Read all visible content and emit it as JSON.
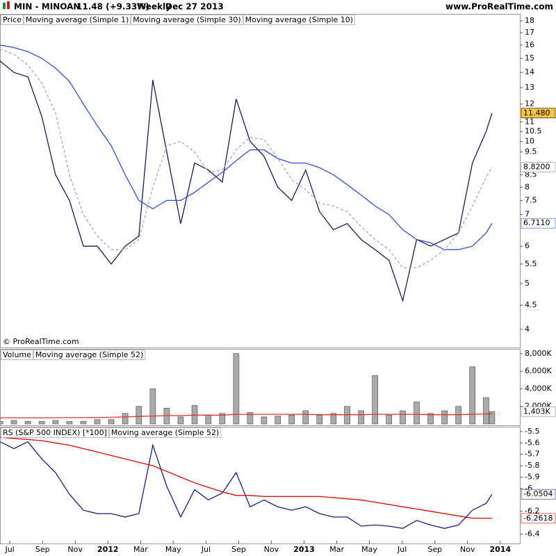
{
  "header": {
    "symbol": "MIN - MINOAN",
    "quote": "11.48 (+9.33%)",
    "period": "Weekly",
    "date": "Dec 27 2013",
    "site": "www.ProRealTime.com"
  },
  "watermark": "© ProRealTime.com",
  "chart_data": [
    {
      "type": "line",
      "label": "Price",
      "log_scale": true,
      "x": [
        2011.45,
        2011.521,
        2011.592,
        2011.663,
        2011.733,
        2011.804,
        2011.875,
        2011.946,
        2012.017,
        2012.088,
        2012.158,
        2012.229,
        2012.3,
        2012.371,
        2012.442,
        2012.512,
        2012.583,
        2012.654,
        2012.725,
        2012.796,
        2012.866,
        2012.937,
        2013.008,
        2013.079,
        2013.15,
        2013.22,
        2013.291,
        2013.362,
        2013.433,
        2013.503,
        2013.574,
        2013.645,
        2013.716,
        2013.787,
        2013.858,
        2013.928,
        2013.958
      ],
      "xlim": [
        2011.45,
        2014.1
      ],
      "ylim": [
        3.8,
        18.5
      ],
      "yticks": [
        4,
        4.5,
        5,
        5.5,
        6,
        7,
        7.5,
        8,
        8.5,
        9.5,
        10,
        10.5,
        11,
        12,
        13,
        14,
        15,
        16,
        17,
        18
      ],
      "series": [
        {
          "name": "Moving average (Simple 1)",
          "color": "#1a1a5e",
          "values": [
            14.8,
            14.0,
            13.7,
            11.3,
            8.5,
            7.5,
            6.0,
            6.0,
            5.5,
            6.0,
            6.3,
            13.5,
            9.5,
            6.7,
            9.0,
            8.7,
            8.2,
            12.3,
            10.0,
            9.3,
            8.0,
            7.5,
            8.7,
            7.1,
            6.5,
            6.7,
            6.2,
            5.9,
            5.6,
            4.6,
            6.2,
            6.0,
            6.2,
            6.4,
            9.0,
            10.5,
            11.48
          ]
        },
        {
          "name": "Moving average (Simple 30)",
          "color": "#2b4fd8",
          "values": [
            16.0,
            15.8,
            15.5,
            15.0,
            14.3,
            13.4,
            12.0,
            10.8,
            9.8,
            8.5,
            7.5,
            7.2,
            7.5,
            7.5,
            7.8,
            8.2,
            8.6,
            9.1,
            9.6,
            9.6,
            9.2,
            9.0,
            9.0,
            8.8,
            8.5,
            8.1,
            7.7,
            7.3,
            7.0,
            6.5,
            6.2,
            6.1,
            5.9,
            5.9,
            6.0,
            6.4,
            6.711
          ]
        },
        {
          "name": "Moving average (Simple 10)",
          "color": "#aaaaaa",
          "dashed": true,
          "values": [
            15.7,
            15.3,
            14.5,
            13.3,
            11.5,
            8.5,
            7.0,
            6.3,
            5.9,
            5.9,
            6.2,
            8.0,
            9.8,
            10.0,
            9.5,
            8.6,
            8.7,
            9.6,
            10.2,
            10.1,
            9.2,
            8.3,
            7.9,
            7.4,
            7.3,
            7.1,
            6.6,
            6.2,
            5.9,
            5.4,
            5.4,
            5.6,
            5.9,
            6.4,
            7.3,
            8.4,
            8.82
          ]
        }
      ],
      "tags": [
        {
          "value": 11.48,
          "label": "11.480",
          "color": "#000000",
          "background": "#f5c542"
        },
        {
          "value": 8.82,
          "label": "8.8200",
          "color": "#888888",
          "background": "#ffffff"
        },
        {
          "value": 6.711,
          "label": "6.7110",
          "color": "#2b4fd8",
          "background": "#ffffff"
        }
      ]
    },
    {
      "type": "bar",
      "x": [
        2011.45,
        2011.521,
        2011.592,
        2011.663,
        2011.733,
        2011.804,
        2011.875,
        2011.946,
        2012.017,
        2012.088,
        2012.158,
        2012.229,
        2012.3,
        2012.371,
        2012.442,
        2012.512,
        2012.583,
        2012.654,
        2012.725,
        2012.796,
        2012.866,
        2012.937,
        2013.008,
        2013.079,
        2013.15,
        2013.22,
        2013.291,
        2013.362,
        2013.433,
        2013.503,
        2013.574,
        2013.645,
        2013.716,
        2013.787,
        2013.858,
        2013.928,
        2013.958
      ],
      "xlim": [
        2011.45,
        2014.1
      ],
      "ylim": [
        0,
        8300000
      ],
      "yticks": [
        {
          "value": 2000000,
          "label": "2,000K"
        },
        {
          "value": 4000000,
          "label": "4,000K"
        },
        {
          "value": 6000000,
          "label": "6,000K"
        },
        {
          "value": 8000000,
          "label": "8,000K"
        }
      ],
      "series": [
        {
          "name": "Volume",
          "style": "bar",
          "color": "#aaaaaa",
          "values": [
            300000,
            400000,
            300000,
            300000,
            400000,
            300000,
            300000,
            500000,
            500000,
            1200000,
            2000000,
            4000000,
            1800000,
            800000,
            2100000,
            1000000,
            1200000,
            8000000,
            1300000,
            800000,
            900000,
            1000000,
            1500000,
            1000000,
            1200000,
            2000000,
            1500000,
            5500000,
            1000000,
            1500000,
            2500000,
            1200000,
            1500000,
            2000000,
            6500000,
            3000000,
            1403000
          ]
        },
        {
          "name": "Moving average (Simple 52)",
          "style": "line",
          "color": "#e03030",
          "values": [
            700000,
            700000,
            700000,
            700000,
            700000,
            720000,
            720000,
            740000,
            760000,
            800000,
            850000,
            900000,
            950000,
            950000,
            1000000,
            1000000,
            1000000,
            1100000,
            1100000,
            1100000,
            1100000,
            1100000,
            1100000,
            1050000,
            1050000,
            1050000,
            1050000,
            1100000,
            1100000,
            1100000,
            1100000,
            1050000,
            1050000,
            1050000,
            1100000,
            1150000,
            1150000
          ]
        }
      ],
      "tags": [
        {
          "value": 1403000,
          "label": "1,403K",
          "color": "#888888",
          "background": "#ffffff"
        }
      ]
    },
    {
      "type": "line",
      "x": [
        2011.45,
        2011.521,
        2011.592,
        2011.663,
        2011.733,
        2011.804,
        2011.875,
        2011.946,
        2012.017,
        2012.088,
        2012.158,
        2012.229,
        2012.3,
        2012.371,
        2012.442,
        2012.512,
        2012.583,
        2012.654,
        2012.725,
        2012.796,
        2012.866,
        2012.937,
        2013.008,
        2013.079,
        2013.15,
        2013.22,
        2013.291,
        2013.362,
        2013.433,
        2013.503,
        2013.574,
        2013.645,
        2013.716,
        2013.787,
        2013.858,
        2013.928,
        2013.958
      ],
      "xlim": [
        2011.45,
        2014.1
      ],
      "xticks": [
        {
          "value": 2011.5,
          "label": "Jul"
        },
        {
          "value": 2011.667,
          "label": "Sep"
        },
        {
          "value": 2011.833,
          "label": "Nov"
        },
        2012,
        {
          "value": 2012.167,
          "label": "Mar"
        },
        {
          "value": 2012.333,
          "label": "May"
        },
        {
          "value": 2012.5,
          "label": "Jul"
        },
        {
          "value": 2012.667,
          "label": "Sep"
        },
        {
          "value": 2012.833,
          "label": "Nov"
        },
        2013,
        {
          "value": 2013.167,
          "label": "Mar"
        },
        {
          "value": 2013.333,
          "label": "May"
        },
        {
          "value": 2013.5,
          "label": "Jul"
        },
        {
          "value": 2013.667,
          "label": "Sep"
        },
        {
          "value": 2013.833,
          "label": "Nov"
        },
        2014
      ],
      "ylim": [
        -6.47,
        -5.47
      ],
      "yticks": [
        -5.5,
        -5.6,
        -5.7,
        -5.8,
        -5.9,
        -6,
        -6.2,
        -6.4
      ],
      "series": [
        {
          "name": "RS (S&P 500 INDEX) [*100]",
          "color": "#1a1a8c",
          "values": [
            -5.59,
            -5.65,
            -5.59,
            -5.74,
            -5.86,
            -6.05,
            -6.19,
            -6.22,
            -6.22,
            -6.25,
            -6.22,
            -5.62,
            -5.98,
            -6.25,
            -6.01,
            -6.1,
            -6.04,
            -5.86,
            -6.16,
            -6.1,
            -6.16,
            -6.19,
            -6.16,
            -6.22,
            -6.25,
            -6.25,
            -6.33,
            -6.32,
            -6.33,
            -6.35,
            -6.28,
            -6.32,
            -6.35,
            -6.32,
            -6.19,
            -6.13,
            -6.0504
          ]
        },
        {
          "name": "Moving average (Simple 52)",
          "color": "#e00000",
          "values": [
            -5.55,
            -5.56,
            -5.57,
            -5.58,
            -5.6,
            -5.62,
            -5.65,
            -5.68,
            -5.71,
            -5.74,
            -5.77,
            -5.8,
            -5.85,
            -5.9,
            -5.95,
            -5.99,
            -6.03,
            -6.06,
            -6.06,
            -6.07,
            -6.07,
            -6.07,
            -6.07,
            -6.07,
            -6.08,
            -6.09,
            -6.1,
            -6.12,
            -6.14,
            -6.16,
            -6.18,
            -6.2,
            -6.22,
            -6.24,
            -6.26,
            -6.26,
            -6.2618
          ]
        }
      ],
      "tags": [
        {
          "value": -6.0504,
          "label": "-6.0504",
          "color": "#1a1a8c",
          "background": "#ffffff"
        },
        {
          "value": -6.2618,
          "label": "-6.2618",
          "color": "#e00000",
          "background": "#ffffff"
        }
      ]
    }
  ]
}
